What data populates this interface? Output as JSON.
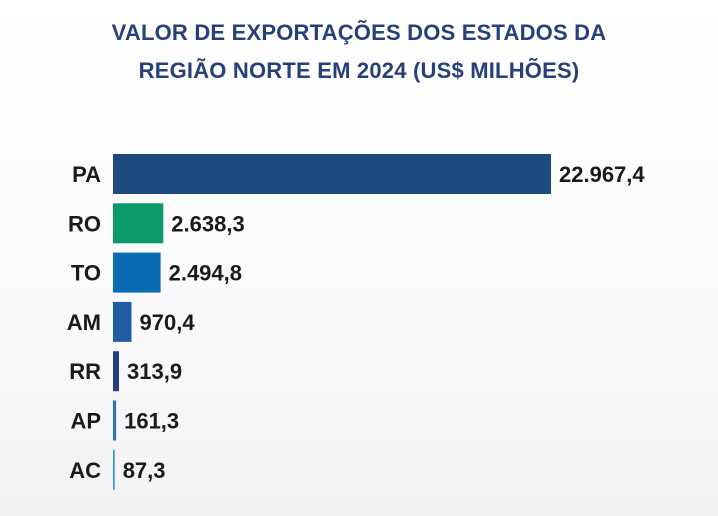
{
  "title_lines": [
    "VALOR DE EXPORTAÇÕES DOS ESTADOS DA",
    "REGIÃO NORTE EM 2024 (US$ MILHÕES)"
  ],
  "chart_data": {
    "type": "bar",
    "orientation": "horizontal",
    "title": "VALOR DE EXPORTAÇÕES DOS ESTADOS DA REGIÃO NORTE EM 2024 (US$ MILHÕES)",
    "categories": [
      "PA",
      "RO",
      "TO",
      "AM",
      "RR",
      "AP",
      "AC"
    ],
    "values": [
      22967.4,
      2638.3,
      2494.8,
      970.4,
      313.9,
      161.3,
      87.3
    ],
    "value_labels": [
      "22.967,4",
      "2.638,3",
      "2.494,8",
      "970,4",
      "313,9",
      "161,3",
      "87,3"
    ],
    "colors": [
      "#1c4a7e",
      "#0c9a6a",
      "#0a6cb5",
      "#1f5da3",
      "#243c86",
      "#2d72c0",
      "#3395cd"
    ],
    "xlim": [
      0,
      22967.4
    ],
    "grid": false,
    "legend": "none",
    "axis_visible": false
  }
}
